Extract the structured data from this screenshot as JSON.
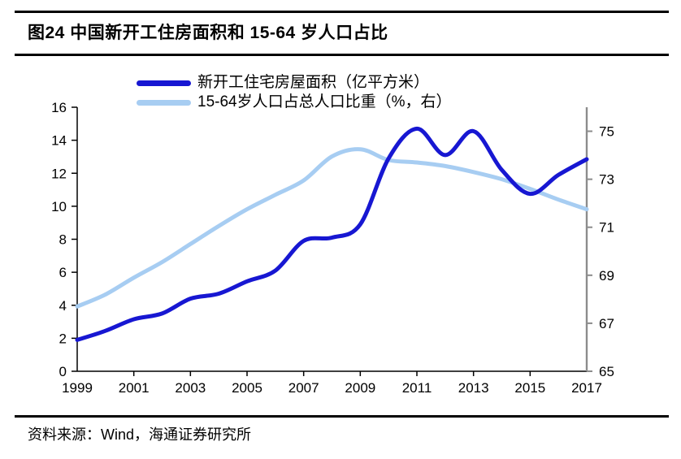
{
  "figure": {
    "title": "图24 中国新开工住房面积和 15-64 岁人口占比",
    "source": "资料来源：Wind，海通证券研究所"
  },
  "chart_data": {
    "type": "line",
    "title": "图24 中国新开工住房面积和 15-64 岁人口占比",
    "x": [
      1999,
      2000,
      2001,
      2002,
      2003,
      2004,
      2005,
      2006,
      2007,
      2008,
      2009,
      2010,
      2011,
      2012,
      2013,
      2014,
      2015,
      2016,
      2017
    ],
    "x_tick_labels": [
      "1999",
      "2001",
      "2003",
      "2005",
      "2007",
      "2009",
      "2011",
      "2013",
      "2015",
      "2017"
    ],
    "series": [
      {
        "name": "新开工住宅房屋面积（亿平方米）",
        "axis": "left",
        "color": "#1717D2",
        "data_name": "housing-area-line",
        "values": [
          1.9,
          2.45,
          3.15,
          3.5,
          4.4,
          4.7,
          5.45,
          6.1,
          7.9,
          8.1,
          8.9,
          12.9,
          14.7,
          13.1,
          14.55,
          12.2,
          10.75,
          11.9,
          12.85
        ]
      },
      {
        "name": "15-64岁人口占总人口比重（%，右）",
        "axis": "right",
        "color": "#A7CDF2",
        "data_name": "population-share-line",
        "values": [
          67.7,
          68.2,
          68.9,
          69.55,
          70.3,
          71.05,
          71.75,
          72.35,
          72.95,
          73.95,
          74.25,
          73.8,
          73.7,
          73.55,
          73.3,
          73.0,
          72.6,
          72.15,
          71.75
        ]
      }
    ],
    "left_axis": {
      "min": 0,
      "max": 16,
      "ticks": [
        0,
        2,
        4,
        6,
        8,
        10,
        12,
        14,
        16
      ]
    },
    "right_axis": {
      "min": 65,
      "max": 76,
      "ticks": [
        65,
        67,
        69,
        71,
        73,
        75
      ]
    },
    "legend_position": "top",
    "grid": false,
    "colors": {
      "axis": "#000000",
      "right_axis": "#8C8C8C",
      "tick_text": "#000000"
    }
  }
}
